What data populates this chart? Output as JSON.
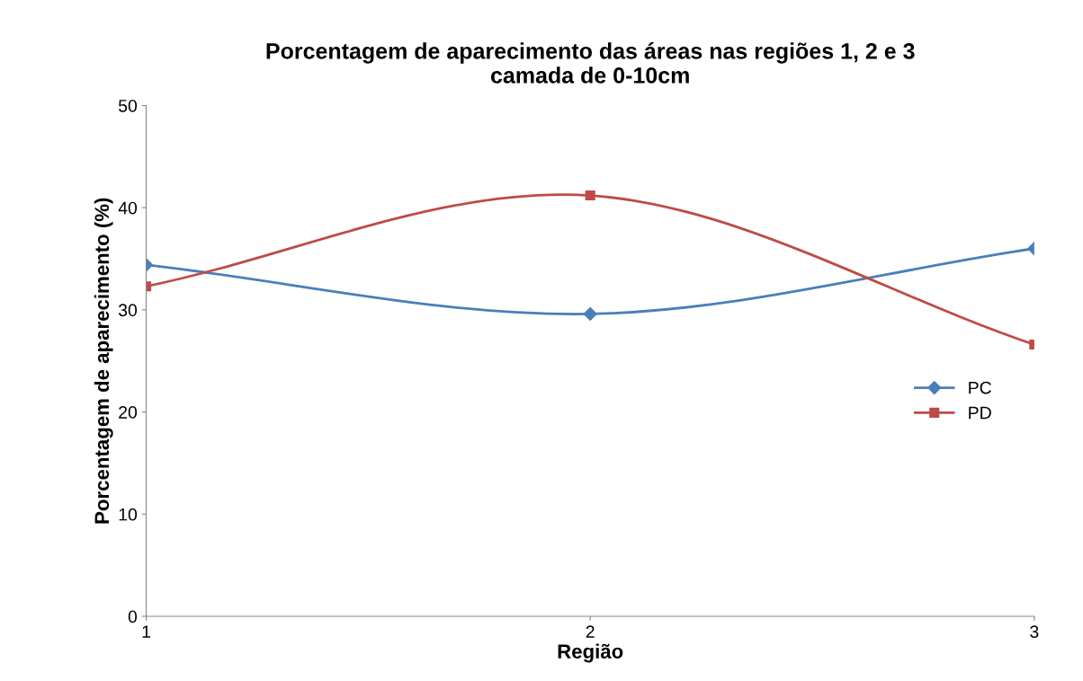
{
  "chart_data": {
    "type": "line",
    "title": "Porcentagem de aparecimento das áreas nas regiões 1, 2 e 3\ncamada de 0-10cm",
    "xlabel": "Região",
    "ylabel": "Porcentagem de aparecimento (%)",
    "x": [
      1,
      2,
      3
    ],
    "series": [
      {
        "name": "PC",
        "color": "#4a7ebb",
        "marker": "diamond",
        "values": [
          34.4,
          29.6,
          36.0
        ]
      },
      {
        "name": "PD",
        "color": "#be4b48",
        "marker": "square",
        "values": [
          32.3,
          41.2,
          26.6
        ]
      }
    ],
    "xlim": [
      1,
      3
    ],
    "xticks": [
      1,
      2,
      3
    ],
    "ylim": [
      0,
      50
    ],
    "yticks": [
      0,
      10,
      20,
      30,
      40,
      50
    ],
    "grid": false,
    "legend": "right",
    "line_style": "solid"
  }
}
